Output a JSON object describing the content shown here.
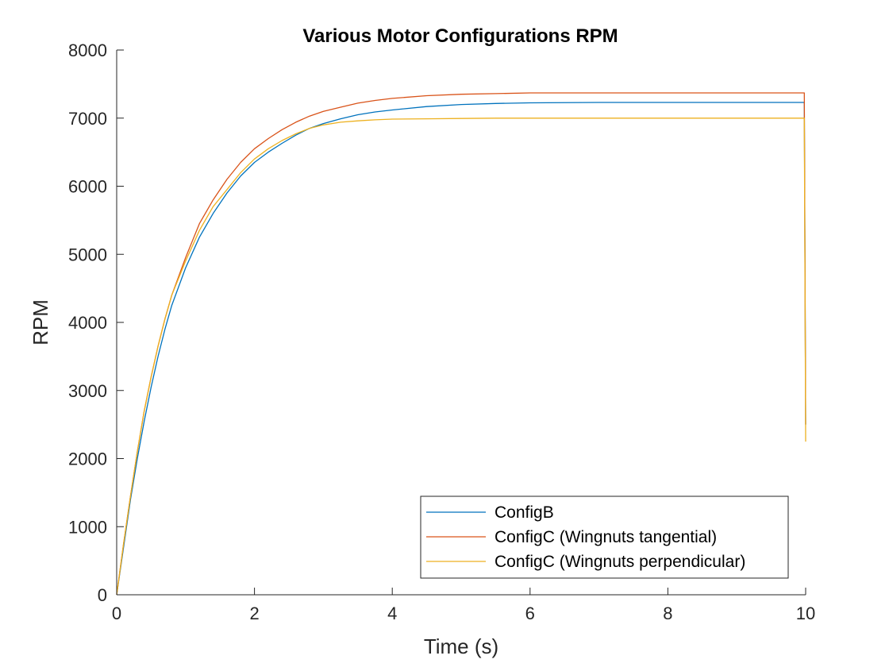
{
  "chart_data": {
    "type": "line",
    "title": "Various Motor Configurations RPM",
    "xlabel": "Time (s)",
    "ylabel": "RPM",
    "xlim": [
      0,
      10
    ],
    "ylim": [
      0,
      8000
    ],
    "x_ticks": [
      0,
      2,
      4,
      6,
      8,
      10
    ],
    "y_ticks": [
      0,
      1000,
      2000,
      3000,
      4000,
      5000,
      6000,
      7000,
      8000
    ],
    "x_tick_labels": [
      "0",
      "2",
      "4",
      "6",
      "8",
      "10"
    ],
    "y_tick_labels": [
      "0",
      "1000",
      "2000",
      "3000",
      "4000",
      "5000",
      "6000",
      "7000",
      "8000"
    ],
    "grid": false,
    "legend_position": "bottom-right",
    "series": [
      {
        "name": "ConfigB",
        "color": "#0072BD",
        "points": [
          [
            0,
            0
          ],
          [
            0.1,
            700
          ],
          [
            0.2,
            1400
          ],
          [
            0.3,
            2000
          ],
          [
            0.4,
            2550
          ],
          [
            0.5,
            3050
          ],
          [
            0.6,
            3500
          ],
          [
            0.7,
            3900
          ],
          [
            0.8,
            4250
          ],
          [
            1.0,
            4800
          ],
          [
            1.2,
            5250
          ],
          [
            1.4,
            5600
          ],
          [
            1.6,
            5900
          ],
          [
            1.8,
            6150
          ],
          [
            2.0,
            6350
          ],
          [
            2.2,
            6500
          ],
          [
            2.4,
            6630
          ],
          [
            2.6,
            6750
          ],
          [
            2.8,
            6850
          ],
          [
            3.0,
            6920
          ],
          [
            3.25,
            6990
          ],
          [
            3.5,
            7050
          ],
          [
            3.75,
            7090
          ],
          [
            4.0,
            7120
          ],
          [
            4.5,
            7170
          ],
          [
            5.0,
            7200
          ],
          [
            5.5,
            7215
          ],
          [
            6.0,
            7225
          ],
          [
            7.0,
            7230
          ],
          [
            8.0,
            7230
          ],
          [
            9.0,
            7230
          ],
          [
            9.98,
            7230
          ],
          [
            10.0,
            2500
          ]
        ]
      },
      {
        "name": "ConfigC (Wingnuts tangential)",
        "color": "#D95319",
        "points": [
          [
            0,
            0
          ],
          [
            0.1,
            750
          ],
          [
            0.2,
            1450
          ],
          [
            0.3,
            2100
          ],
          [
            0.4,
            2700
          ],
          [
            0.5,
            3200
          ],
          [
            0.6,
            3650
          ],
          [
            0.7,
            4050
          ],
          [
            0.8,
            4400
          ],
          [
            1.0,
            4950
          ],
          [
            1.2,
            5450
          ],
          [
            1.4,
            5800
          ],
          [
            1.6,
            6100
          ],
          [
            1.8,
            6350
          ],
          [
            2.0,
            6550
          ],
          [
            2.2,
            6700
          ],
          [
            2.4,
            6830
          ],
          [
            2.6,
            6940
          ],
          [
            2.8,
            7030
          ],
          [
            3.0,
            7100
          ],
          [
            3.25,
            7160
          ],
          [
            3.5,
            7220
          ],
          [
            3.75,
            7260
          ],
          [
            4.0,
            7290
          ],
          [
            4.5,
            7330
          ],
          [
            5.0,
            7350
          ],
          [
            5.5,
            7360
          ],
          [
            6.0,
            7370
          ],
          [
            7.0,
            7370
          ],
          [
            8.0,
            7370
          ],
          [
            9.0,
            7370
          ],
          [
            9.98,
            7370
          ],
          [
            10.0,
            2500
          ]
        ]
      },
      {
        "name": "ConfigC (Wingnuts perpendicular)",
        "color": "#EDB120",
        "points": [
          [
            0,
            0
          ],
          [
            0.1,
            750
          ],
          [
            0.2,
            1450
          ],
          [
            0.3,
            2100
          ],
          [
            0.4,
            2700
          ],
          [
            0.5,
            3200
          ],
          [
            0.6,
            3650
          ],
          [
            0.7,
            4050
          ],
          [
            0.8,
            4400
          ],
          [
            1.0,
            4900
          ],
          [
            1.2,
            5350
          ],
          [
            1.4,
            5700
          ],
          [
            1.6,
            5950
          ],
          [
            1.8,
            6200
          ],
          [
            2.0,
            6400
          ],
          [
            2.2,
            6550
          ],
          [
            2.4,
            6670
          ],
          [
            2.6,
            6770
          ],
          [
            2.8,
            6850
          ],
          [
            3.0,
            6900
          ],
          [
            3.25,
            6940
          ],
          [
            3.5,
            6960
          ],
          [
            3.75,
            6975
          ],
          [
            4.0,
            6985
          ],
          [
            4.5,
            6990
          ],
          [
            5.0,
            6995
          ],
          [
            5.5,
            7000
          ],
          [
            6.0,
            7000
          ],
          [
            7.0,
            7000
          ],
          [
            8.0,
            7000
          ],
          [
            9.0,
            7000
          ],
          [
            9.98,
            7000
          ],
          [
            10.0,
            2250
          ]
        ]
      }
    ]
  }
}
